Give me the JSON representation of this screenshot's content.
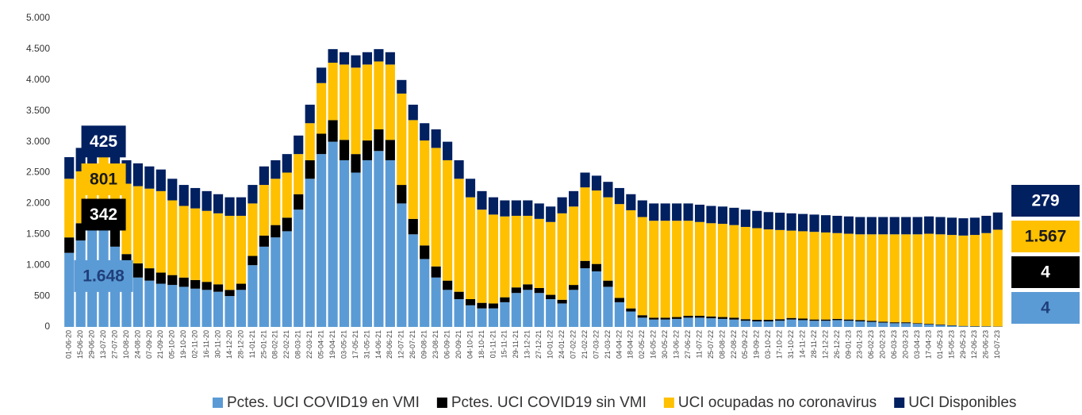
{
  "chart_data": {
    "type": "stacked-bar",
    "categories": [
      "01-06-20",
      "15-06-20",
      "29-06-20",
      "13-07-20",
      "27-07-20",
      "10-08-20",
      "24-08-20",
      "07-09-20",
      "21-09-20",
      "05-10-20",
      "19-10-20",
      "02-11-20",
      "16-11-20",
      "30-11-20",
      "14-12-20",
      "28-12-20",
      "11-01-21",
      "25-01-21",
      "08-02-21",
      "22-02-21",
      "08-03-21",
      "22-03-21",
      "05-04-21",
      "19-04-21",
      "03-05-21",
      "17-05-21",
      "31-05-21",
      "14-06-21",
      "28-06-21",
      "12-07-21",
      "26-07-21",
      "09-08-21",
      "23-08-21",
      "06-09-21",
      "20-09-21",
      "04-10-21",
      "18-10-21",
      "01-11-21",
      "15-11-21",
      "29-11-21",
      "13-12-21",
      "27-12-21",
      "10-01-22",
      "24-01-22",
      "07-02-22",
      "21-02-22",
      "07-03-22",
      "21-03-22",
      "04-04-22",
      "18-04-22",
      "02-05-22",
      "16-05-22",
      "30-05-22",
      "13-06-22",
      "27-06-22",
      "11-07-22",
      "25-07-22",
      "08-08-22",
      "22-08-22",
      "05-09-22",
      "19-09-22",
      "03-10-22",
      "17-10-22",
      "31-10-22",
      "14-11-22",
      "28-11-22",
      "12-12-22",
      "26-12-22",
      "09-01-23",
      "23-01-23",
      "06-02-23",
      "20-02-23",
      "06-03-23",
      "20-03-23",
      "03-04-23",
      "17-04-23",
      "01-05-23",
      "15-05-23",
      "29-05-23",
      "12-06-23",
      "26-06-23",
      "10-07-23"
    ],
    "series": [
      {
        "name": "Pctes. UCI COVID19 en VMI",
        "color": "#5b9bd5",
        "values": [
          1200,
          1400,
          1600,
          1648,
          1300,
          900,
          800,
          750,
          700,
          680,
          650,
          620,
          600,
          570,
          500,
          600,
          1000,
          1300,
          1450,
          1550,
          1900,
          2400,
          2800,
          3000,
          2700,
          2500,
          2700,
          2850,
          2700,
          2000,
          1500,
          1100,
          800,
          600,
          450,
          350,
          300,
          300,
          400,
          550,
          600,
          550,
          450,
          380,
          600,
          950,
          900,
          650,
          400,
          250,
          150,
          120,
          120,
          130,
          150,
          150,
          140,
          130,
          120,
          100,
          90,
          90,
          100,
          120,
          110,
          100,
          100,
          110,
          100,
          90,
          80,
          70,
          60,
          60,
          50,
          40,
          30,
          20,
          10,
          8,
          6,
          4
        ],
        "value_labels": [
          null,
          null,
          null,
          "1.648",
          null,
          null,
          null,
          null,
          null,
          null,
          null,
          null,
          null,
          null,
          null,
          null,
          null,
          null,
          null,
          null,
          null,
          null,
          null,
          null,
          null,
          null,
          null,
          null,
          null,
          null,
          null,
          null,
          null,
          null,
          null,
          null,
          null,
          null,
          null,
          null,
          null,
          null,
          null,
          null,
          null,
          null,
          null,
          null,
          null,
          null,
          null,
          null,
          null,
          null,
          null,
          null,
          null,
          null,
          null,
          null,
          null,
          null,
          null,
          null,
          null,
          null,
          null,
          null,
          null,
          null,
          null,
          null,
          null,
          null,
          null,
          null,
          null,
          null,
          null,
          null,
          null,
          "4"
        ]
      },
      {
        "name": "Pctes. UCI COVID19 sin VMI",
        "color": "#000000",
        "values": [
          250,
          280,
          320,
          342,
          330,
          280,
          230,
          200,
          180,
          160,
          150,
          140,
          130,
          120,
          100,
          100,
          150,
          180,
          200,
          220,
          250,
          300,
          330,
          350,
          330,
          300,
          320,
          350,
          330,
          300,
          250,
          220,
          180,
          150,
          120,
          100,
          90,
          80,
          80,
          90,
          90,
          80,
          70,
          60,
          80,
          120,
          120,
          100,
          70,
          50,
          40,
          30,
          30,
          30,
          30,
          30,
          30,
          30,
          30,
          25,
          25,
          25,
          25,
          25,
          25,
          20,
          20,
          20,
          20,
          20,
          20,
          15,
          15,
          15,
          10,
          10,
          10,
          8,
          6,
          5,
          5,
          4
        ],
        "value_labels": [
          null,
          null,
          null,
          "342",
          null,
          null,
          null,
          null,
          null,
          null,
          null,
          null,
          null,
          null,
          null,
          null,
          null,
          null,
          null,
          null,
          null,
          null,
          null,
          null,
          null,
          null,
          null,
          null,
          null,
          null,
          null,
          null,
          null,
          null,
          null,
          null,
          null,
          null,
          null,
          null,
          null,
          null,
          null,
          null,
          null,
          null,
          null,
          null,
          null,
          null,
          null,
          null,
          null,
          null,
          null,
          null,
          null,
          null,
          null,
          null,
          null,
          null,
          null,
          null,
          null,
          null,
          null,
          null,
          null,
          null,
          null,
          null,
          null,
          null,
          null,
          null,
          null,
          null,
          null,
          null,
          null,
          "4"
        ]
      },
      {
        "name": "UCI ocupadas no coronavirus",
        "color": "#ffc000",
        "values": [
          950,
          840,
          680,
          801,
          870,
          1140,
          1250,
          1290,
          1320,
          1210,
          1160,
          1160,
          1150,
          1150,
          1200,
          1100,
          850,
          820,
          750,
          730,
          650,
          600,
          820,
          930,
          1220,
          1400,
          1230,
          1100,
          1220,
          1480,
          1600,
          1700,
          1920,
          1950,
          1830,
          1650,
          1510,
          1440,
          1310,
          1160,
          1110,
          1120,
          1180,
          1400,
          1270,
          1190,
          1190,
          1350,
          1520,
          1590,
          1590,
          1570,
          1570,
          1560,
          1540,
          1520,
          1510,
          1510,
          1500,
          1495,
          1485,
          1465,
          1445,
          1415,
          1415,
          1420,
          1410,
          1390,
          1390,
          1390,
          1400,
          1415,
          1425,
          1425,
          1440,
          1460,
          1460,
          1462,
          1464,
          1477,
          1509,
          1567
        ],
        "value_labels": [
          null,
          null,
          null,
          "801",
          null,
          null,
          null,
          null,
          null,
          null,
          null,
          null,
          null,
          null,
          null,
          null,
          null,
          null,
          null,
          null,
          null,
          null,
          null,
          null,
          null,
          null,
          null,
          null,
          null,
          null,
          null,
          null,
          null,
          null,
          null,
          null,
          null,
          null,
          null,
          null,
          null,
          null,
          null,
          null,
          null,
          null,
          null,
          null,
          null,
          null,
          null,
          null,
          null,
          null,
          null,
          null,
          null,
          null,
          null,
          null,
          null,
          null,
          null,
          null,
          null,
          null,
          null,
          null,
          null,
          null,
          null,
          null,
          null,
          null,
          null,
          null,
          null,
          null,
          null,
          null,
          null,
          "1.567"
        ]
      },
      {
        "name": "UCI Disponibles",
        "color": "#002060",
        "values": [
          350,
          380,
          400,
          425,
          400,
          380,
          370,
          360,
          350,
          350,
          340,
          330,
          320,
          310,
          300,
          300,
          300,
          300,
          300,
          300,
          300,
          300,
          250,
          220,
          200,
          200,
          200,
          200,
          200,
          220,
          250,
          280,
          300,
          300,
          300,
          300,
          300,
          280,
          260,
          250,
          250,
          250,
          250,
          260,
          250,
          240,
          240,
          250,
          260,
          260,
          270,
          280,
          280,
          280,
          280,
          280,
          280,
          280,
          280,
          280,
          280,
          280,
          280,
          280,
          280,
          280,
          280,
          280,
          280,
          280,
          280,
          280,
          280,
          280,
          280,
          280,
          280,
          280,
          280,
          280,
          280,
          279
        ],
        "value_labels": [
          null,
          null,
          null,
          "425",
          null,
          null,
          null,
          null,
          null,
          null,
          null,
          null,
          null,
          null,
          null,
          null,
          null,
          null,
          null,
          null,
          null,
          null,
          null,
          null,
          null,
          null,
          null,
          null,
          null,
          null,
          null,
          null,
          null,
          null,
          null,
          null,
          null,
          null,
          null,
          null,
          null,
          null,
          null,
          null,
          null,
          null,
          null,
          null,
          null,
          null,
          null,
          null,
          null,
          null,
          null,
          null,
          null,
          null,
          null,
          null,
          null,
          null,
          null,
          null,
          null,
          null,
          null,
          null,
          null,
          null,
          null,
          null,
          null,
          null,
          null,
          null,
          null,
          null,
          null,
          null,
          null,
          "279"
        ]
      }
    ],
    "ylim": [
      0,
      5000
    ],
    "yticks": [
      0,
      500,
      {
        "value": 1000,
        "label": "1.000"
      },
      {
        "value": 1500,
        "label": "1.500"
      },
      {
        "value": 2000,
        "label": "2.000"
      },
      {
        "value": 2500,
        "label": "2.500"
      },
      {
        "value": 3000,
        "label": "3.000"
      },
      {
        "value": 3500,
        "label": "3.500"
      },
      {
        "value": 4000,
        "label": "4.000"
      },
      {
        "value": 4500,
        "label": "4.500"
      },
      {
        "value": 5000,
        "label": "5.000"
      }
    ],
    "grid": false,
    "legend": "bottom"
  }
}
